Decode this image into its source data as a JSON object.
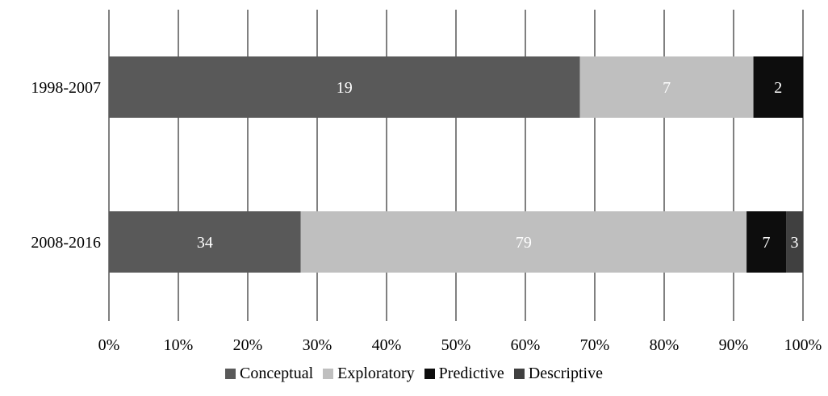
{
  "chart_data": {
    "type": "bar",
    "orientation": "horizontal",
    "stacked": "percent",
    "title": "",
    "xlabel": "",
    "ylabel": "",
    "xlim": [
      0,
      100
    ],
    "xticks": [
      "0%",
      "10%",
      "20%",
      "30%",
      "40%",
      "50%",
      "60%",
      "70%",
      "80%",
      "90%",
      "100%"
    ],
    "categories": [
      "1998-2007",
      "2008-2016"
    ],
    "series": [
      {
        "name": "Conceptual",
        "color": "#595959",
        "label_color": "#ffffff",
        "values": [
          19,
          34
        ]
      },
      {
        "name": "Exploratory",
        "color": "#bfbfbf",
        "label_color": "#ffffff",
        "values": [
          7,
          79
        ]
      },
      {
        "name": "Predictive",
        "color": "#0d0d0d",
        "label_color": "#ffffff",
        "values": [
          2,
          7
        ]
      },
      {
        "name": "Descriptive",
        "color": "#404040",
        "label_color": "#ffffff",
        "values": [
          0,
          3
        ]
      }
    ],
    "grid": "vertical",
    "legend_position": "bottom"
  }
}
